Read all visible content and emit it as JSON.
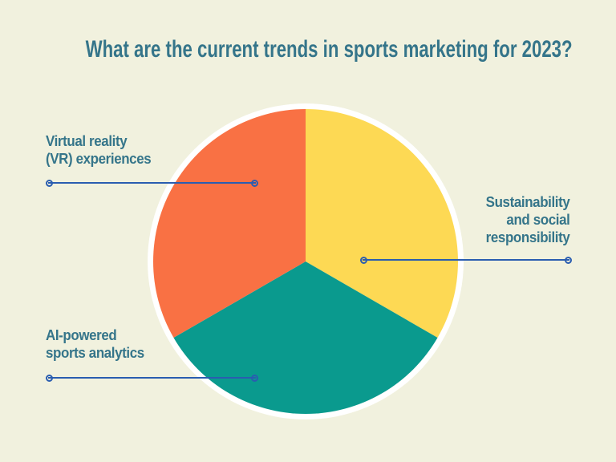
{
  "title": "What are the current trends in sports marketing for 2023?",
  "colors": {
    "background": "#F1F1DE",
    "heading": "#35758A",
    "label": "#35758A",
    "callout-line": "#2A5DB0",
    "pie-outline": "#FFFFFF"
  },
  "chart_data": {
    "type": "pie",
    "title": "What are the current trends in sports marketing for 2023?",
    "legend_position": "none",
    "labels_style": "external-callout-lines",
    "slices": [
      {
        "label": "Sustainability and social responsibility",
        "value_pct": 33.3,
        "color": "#FDD954",
        "start_angle_deg": 0,
        "end_angle_deg": 120,
        "callout_side": "right"
      },
      {
        "label": "AI-powered sports analytics",
        "value_pct": 33.3,
        "color": "#0A9A8E",
        "start_angle_deg": 120,
        "end_angle_deg": 240,
        "callout_side": "bottom-left"
      },
      {
        "label": "Virtual reality (VR) experiences",
        "value_pct": 33.4,
        "color": "#F97144",
        "start_angle_deg": 240,
        "end_angle_deg": 360,
        "callout_side": "top-left"
      }
    ]
  },
  "callouts": {
    "vr": {
      "lines": [
        "Virtual reality",
        "(VR) experiences"
      ]
    },
    "sustainability": {
      "lines": [
        "Sustainability",
        "and social",
        "responsibility"
      ]
    },
    "ai": {
      "lines": [
        "AI-powered",
        "sports analytics"
      ]
    }
  }
}
